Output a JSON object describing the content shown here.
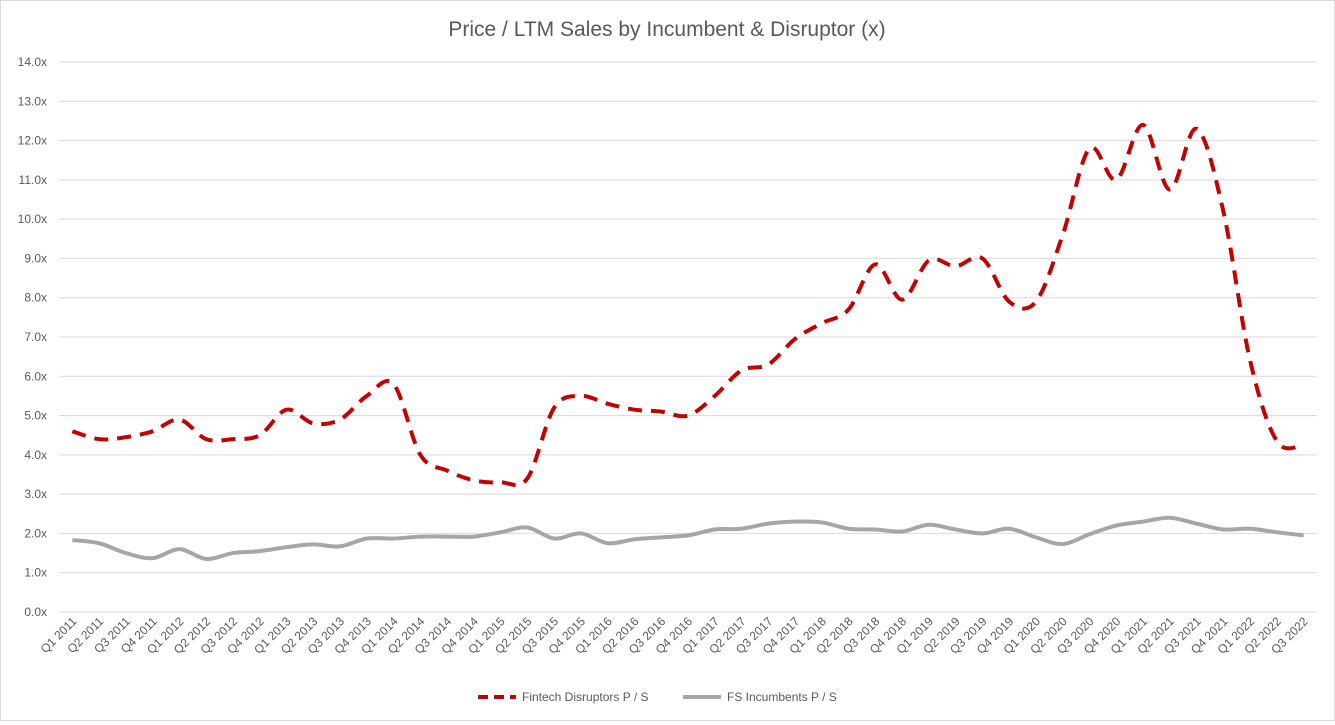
{
  "chart_data": {
    "type": "line",
    "title": "Price / LTM Sales by Incumbent & Disruptor (x)",
    "xlabel": "",
    "ylabel": "",
    "ylim": [
      0,
      14
    ],
    "y_ticks": [
      "0.0x",
      "1.0x",
      "2.0x",
      "3.0x",
      "4.0x",
      "5.0x",
      "6.0x",
      "7.0x",
      "8.0x",
      "9.0x",
      "10.0x",
      "11.0x",
      "12.0x",
      "13.0x",
      "14.0x"
    ],
    "grid": "horizontal",
    "legend_position": "bottom",
    "categories": [
      "Q1 2011",
      "Q2 2011",
      "Q3 2011",
      "Q4 2011",
      "Q1 2012",
      "Q2 2012",
      "Q3 2012",
      "Q4 2012",
      "Q1 2013",
      "Q2 2013",
      "Q3 2013",
      "Q4 2013",
      "Q1 2014",
      "Q2 2014",
      "Q3 2014",
      "Q4 2014",
      "Q1 2015",
      "Q2 2015",
      "Q3 2015",
      "Q4 2015",
      "Q1 2016",
      "Q2 2016",
      "Q3 2016",
      "Q4 2016",
      "Q1 2017",
      "Q2 2017",
      "Q3 2017",
      "Q4 2017",
      "Q1 2018",
      "Q2 2018",
      "Q3 2018",
      "Q4 2018",
      "Q1 2019",
      "Q2 2019",
      "Q3 2019",
      "Q4 2019",
      "Q1 2020",
      "Q2 2020",
      "Q3 2020",
      "Q4 2020",
      "Q1 2021",
      "Q2 2021",
      "Q3 2021",
      "Q4 2021",
      "Q1 2022",
      "Q2 2022",
      "Q3 2022"
    ],
    "series": [
      {
        "name": "Fintech Disruptors P / S",
        "color": "#c00000",
        "style": "dashed",
        "values": [
          4.6,
          4.4,
          4.45,
          4.6,
          4.9,
          4.4,
          4.4,
          4.5,
          5.15,
          4.8,
          4.9,
          5.5,
          5.8,
          4.0,
          3.6,
          3.35,
          3.3,
          3.4,
          5.2,
          5.5,
          5.3,
          5.15,
          5.1,
          5.0,
          5.5,
          6.15,
          6.3,
          6.95,
          7.35,
          7.7,
          8.85,
          7.95,
          8.95,
          8.8,
          9.0,
          7.9,
          7.9,
          9.6,
          11.8,
          11.0,
          12.4,
          10.75,
          12.3,
          10.2,
          6.4,
          4.35,
          4.25
        ]
      },
      {
        "name": "FS Incumbents P / S",
        "color": "#a6a6a6",
        "style": "solid",
        "values": [
          1.83,
          1.75,
          1.5,
          1.37,
          1.6,
          1.35,
          1.5,
          1.55,
          1.65,
          1.72,
          1.67,
          1.87,
          1.87,
          1.92,
          1.92,
          1.92,
          2.03,
          2.15,
          1.87,
          2.0,
          1.75,
          1.85,
          1.9,
          1.95,
          2.1,
          2.12,
          2.25,
          2.3,
          2.28,
          2.12,
          2.1,
          2.05,
          2.22,
          2.1,
          2.0,
          2.12,
          1.9,
          1.73,
          1.98,
          2.2,
          2.3,
          2.4,
          2.25,
          2.1,
          2.12,
          2.03,
          1.95
        ]
      }
    ]
  }
}
